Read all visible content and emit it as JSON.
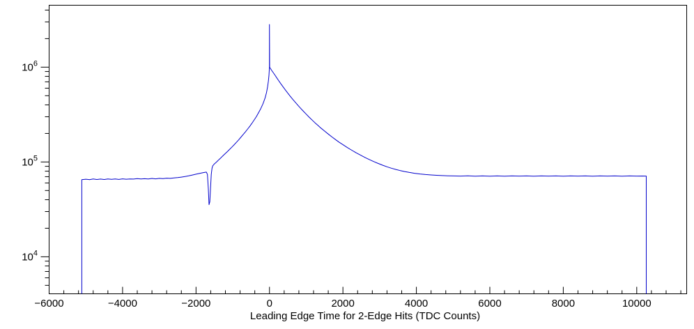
{
  "page": {
    "background": "#ffffff"
  },
  "chart_data": {
    "type": "line",
    "title": "",
    "xlabel": "Leading Edge Time for 2-Edge Hits (TDC Counts)",
    "ylabel": "",
    "y_scale": "log",
    "grid": false,
    "legend": false,
    "line_color": "#0000cc",
    "frame_color": "#000000",
    "x_range": [
      -6000,
      11360
    ],
    "y_range": [
      4070,
      4500000
    ],
    "x_minor_step": 400,
    "x_ticks": [
      {
        "value": -6000,
        "label": "−6000"
      },
      {
        "value": -4000,
        "label": "−4000"
      },
      {
        "value": -2000,
        "label": "−2000"
      },
      {
        "value": 0,
        "label": "0"
      },
      {
        "value": 2000,
        "label": "2000"
      },
      {
        "value": 4000,
        "label": "4000"
      },
      {
        "value": 6000,
        "label": "6000"
      },
      {
        "value": 8000,
        "label": "8000"
      },
      {
        "value": 10000,
        "label": "10000"
      }
    ],
    "y_ticks": [
      {
        "value": 10000,
        "base": "10",
        "exp": "4"
      },
      {
        "value": 100000,
        "base": "10",
        "exp": "5"
      },
      {
        "value": 1000000,
        "base": "10",
        "exp": "6"
      }
    ],
    "points": [
      [
        -5110,
        4100
      ],
      [
        -5110,
        65000
      ],
      [
        -5000,
        65800
      ],
      [
        -4900,
        65100
      ],
      [
        -4800,
        66200
      ],
      [
        -4700,
        65400
      ],
      [
        -4600,
        66000
      ],
      [
        -4500,
        65300
      ],
      [
        -4400,
        66300
      ],
      [
        -4300,
        65600
      ],
      [
        -4200,
        66100
      ],
      [
        -4100,
        65500
      ],
      [
        -4000,
        66400
      ],
      [
        -3900,
        65800
      ],
      [
        -3800,
        66300
      ],
      [
        -3700,
        66000
      ],
      [
        -3600,
        66700
      ],
      [
        -3500,
        66100
      ],
      [
        -3400,
        66600
      ],
      [
        -3300,
        66200
      ],
      [
        -3200,
        67000
      ],
      [
        -3100,
        66400
      ],
      [
        -3000,
        67200
      ],
      [
        -2900,
        66800
      ],
      [
        -2800,
        67500
      ],
      [
        -2700,
        67100
      ],
      [
        -2600,
        67900
      ],
      [
        -2500,
        68400
      ],
      [
        -2400,
        69200
      ],
      [
        -2300,
        70200
      ],
      [
        -2200,
        71400
      ],
      [
        -2100,
        72800
      ],
      [
        -2000,
        74300
      ],
      [
        -1900,
        75900
      ],
      [
        -1800,
        77300
      ],
      [
        -1720,
        78200
      ],
      [
        -1690,
        74000
      ],
      [
        -1665,
        52000
      ],
      [
        -1645,
        35500
      ],
      [
        -1625,
        38000
      ],
      [
        -1605,
        52000
      ],
      [
        -1585,
        74000
      ],
      [
        -1565,
        86000
      ],
      [
        -1545,
        91000
      ],
      [
        -1500,
        95500
      ],
      [
        -1440,
        100000
      ],
      [
        -1380,
        105500
      ],
      [
        -1320,
        111000
      ],
      [
        -1260,
        117000
      ],
      [
        -1200,
        123000
      ],
      [
        -1140,
        129500
      ],
      [
        -1080,
        136500
      ],
      [
        -1020,
        144000
      ],
      [
        -960,
        152000
      ],
      [
        -900,
        161000
      ],
      [
        -840,
        171000
      ],
      [
        -780,
        182000
      ],
      [
        -720,
        194000
      ],
      [
        -660,
        207000
      ],
      [
        -600,
        221000
      ],
      [
        -540,
        237000
      ],
      [
        -480,
        255000
      ],
      [
        -420,
        276000
      ],
      [
        -360,
        300000
      ],
      [
        -300,
        329000
      ],
      [
        -240,
        364000
      ],
      [
        -180,
        409000
      ],
      [
        -120,
        472000
      ],
      [
        -80,
        540000
      ],
      [
        -50,
        625000
      ],
      [
        -30,
        715000
      ],
      [
        -15,
        820000
      ],
      [
        -5,
        940000
      ],
      [
        0,
        1010000
      ],
      [
        0,
        2820000
      ],
      [
        5,
        1000000
      ],
      [
        20,
        975000
      ],
      [
        60,
        925000
      ],
      [
        100,
        878000
      ],
      [
        150,
        822000
      ],
      [
        200,
        770000
      ],
      [
        260,
        712000
      ],
      [
        320,
        660000
      ],
      [
        380,
        613000
      ],
      [
        440,
        570000
      ],
      [
        500,
        531000
      ],
      [
        570,
        491000
      ],
      [
        640,
        455000
      ],
      [
        710,
        423000
      ],
      [
        780,
        394000
      ],
      [
        850,
        368000
      ],
      [
        920,
        344000
      ],
      [
        1000,
        319000
      ],
      [
        1080,
        297000
      ],
      [
        1160,
        277000
      ],
      [
        1240,
        259000
      ],
      [
        1320,
        243000
      ],
      [
        1400,
        228000
      ],
      [
        1500,
        212000
      ],
      [
        1600,
        197000
      ],
      [
        1700,
        184000
      ],
      [
        1800,
        172000
      ],
      [
        1900,
        161000
      ],
      [
        2000,
        152000
      ],
      [
        2120,
        142000
      ],
      [
        2240,
        133000
      ],
      [
        2360,
        125000
      ],
      [
        2480,
        118000
      ],
      [
        2600,
        111500
      ],
      [
        2720,
        106000
      ],
      [
        2840,
        101000
      ],
      [
        2960,
        96500
      ],
      [
        3080,
        92500
      ],
      [
        3200,
        89000
      ],
      [
        3320,
        86000
      ],
      [
        3440,
        83400
      ],
      [
        3560,
        81200
      ],
      [
        3680,
        79300
      ],
      [
        3800,
        77700
      ],
      [
        3950,
        76000
      ],
      [
        4100,
        74700
      ],
      [
        4250,
        73700
      ],
      [
        4400,
        72900
      ],
      [
        4550,
        72300
      ],
      [
        4700,
        71900
      ],
      [
        4850,
        71500
      ],
      [
        5000,
        71300
      ],
      [
        5200,
        71000
      ],
      [
        5400,
        71400
      ],
      [
        5600,
        70900
      ],
      [
        5800,
        71300
      ],
      [
        6000,
        70800
      ],
      [
        6200,
        71200
      ],
      [
        6400,
        70900
      ],
      [
        6600,
        71300
      ],
      [
        6800,
        71000
      ],
      [
        7000,
        71200
      ],
      [
        7200,
        70800
      ],
      [
        7400,
        71300
      ],
      [
        7600,
        71000
      ],
      [
        7800,
        71200
      ],
      [
        8000,
        70900
      ],
      [
        8200,
        71300
      ],
      [
        8400,
        71000
      ],
      [
        8600,
        71200
      ],
      [
        8800,
        70900
      ],
      [
        9000,
        71200
      ],
      [
        9200,
        71000
      ],
      [
        9400,
        71300
      ],
      [
        9600,
        70900
      ],
      [
        9800,
        71200
      ],
      [
        10000,
        71000
      ],
      [
        10150,
        71100
      ],
      [
        10260,
        71000
      ],
      [
        10260,
        4100
      ]
    ]
  }
}
